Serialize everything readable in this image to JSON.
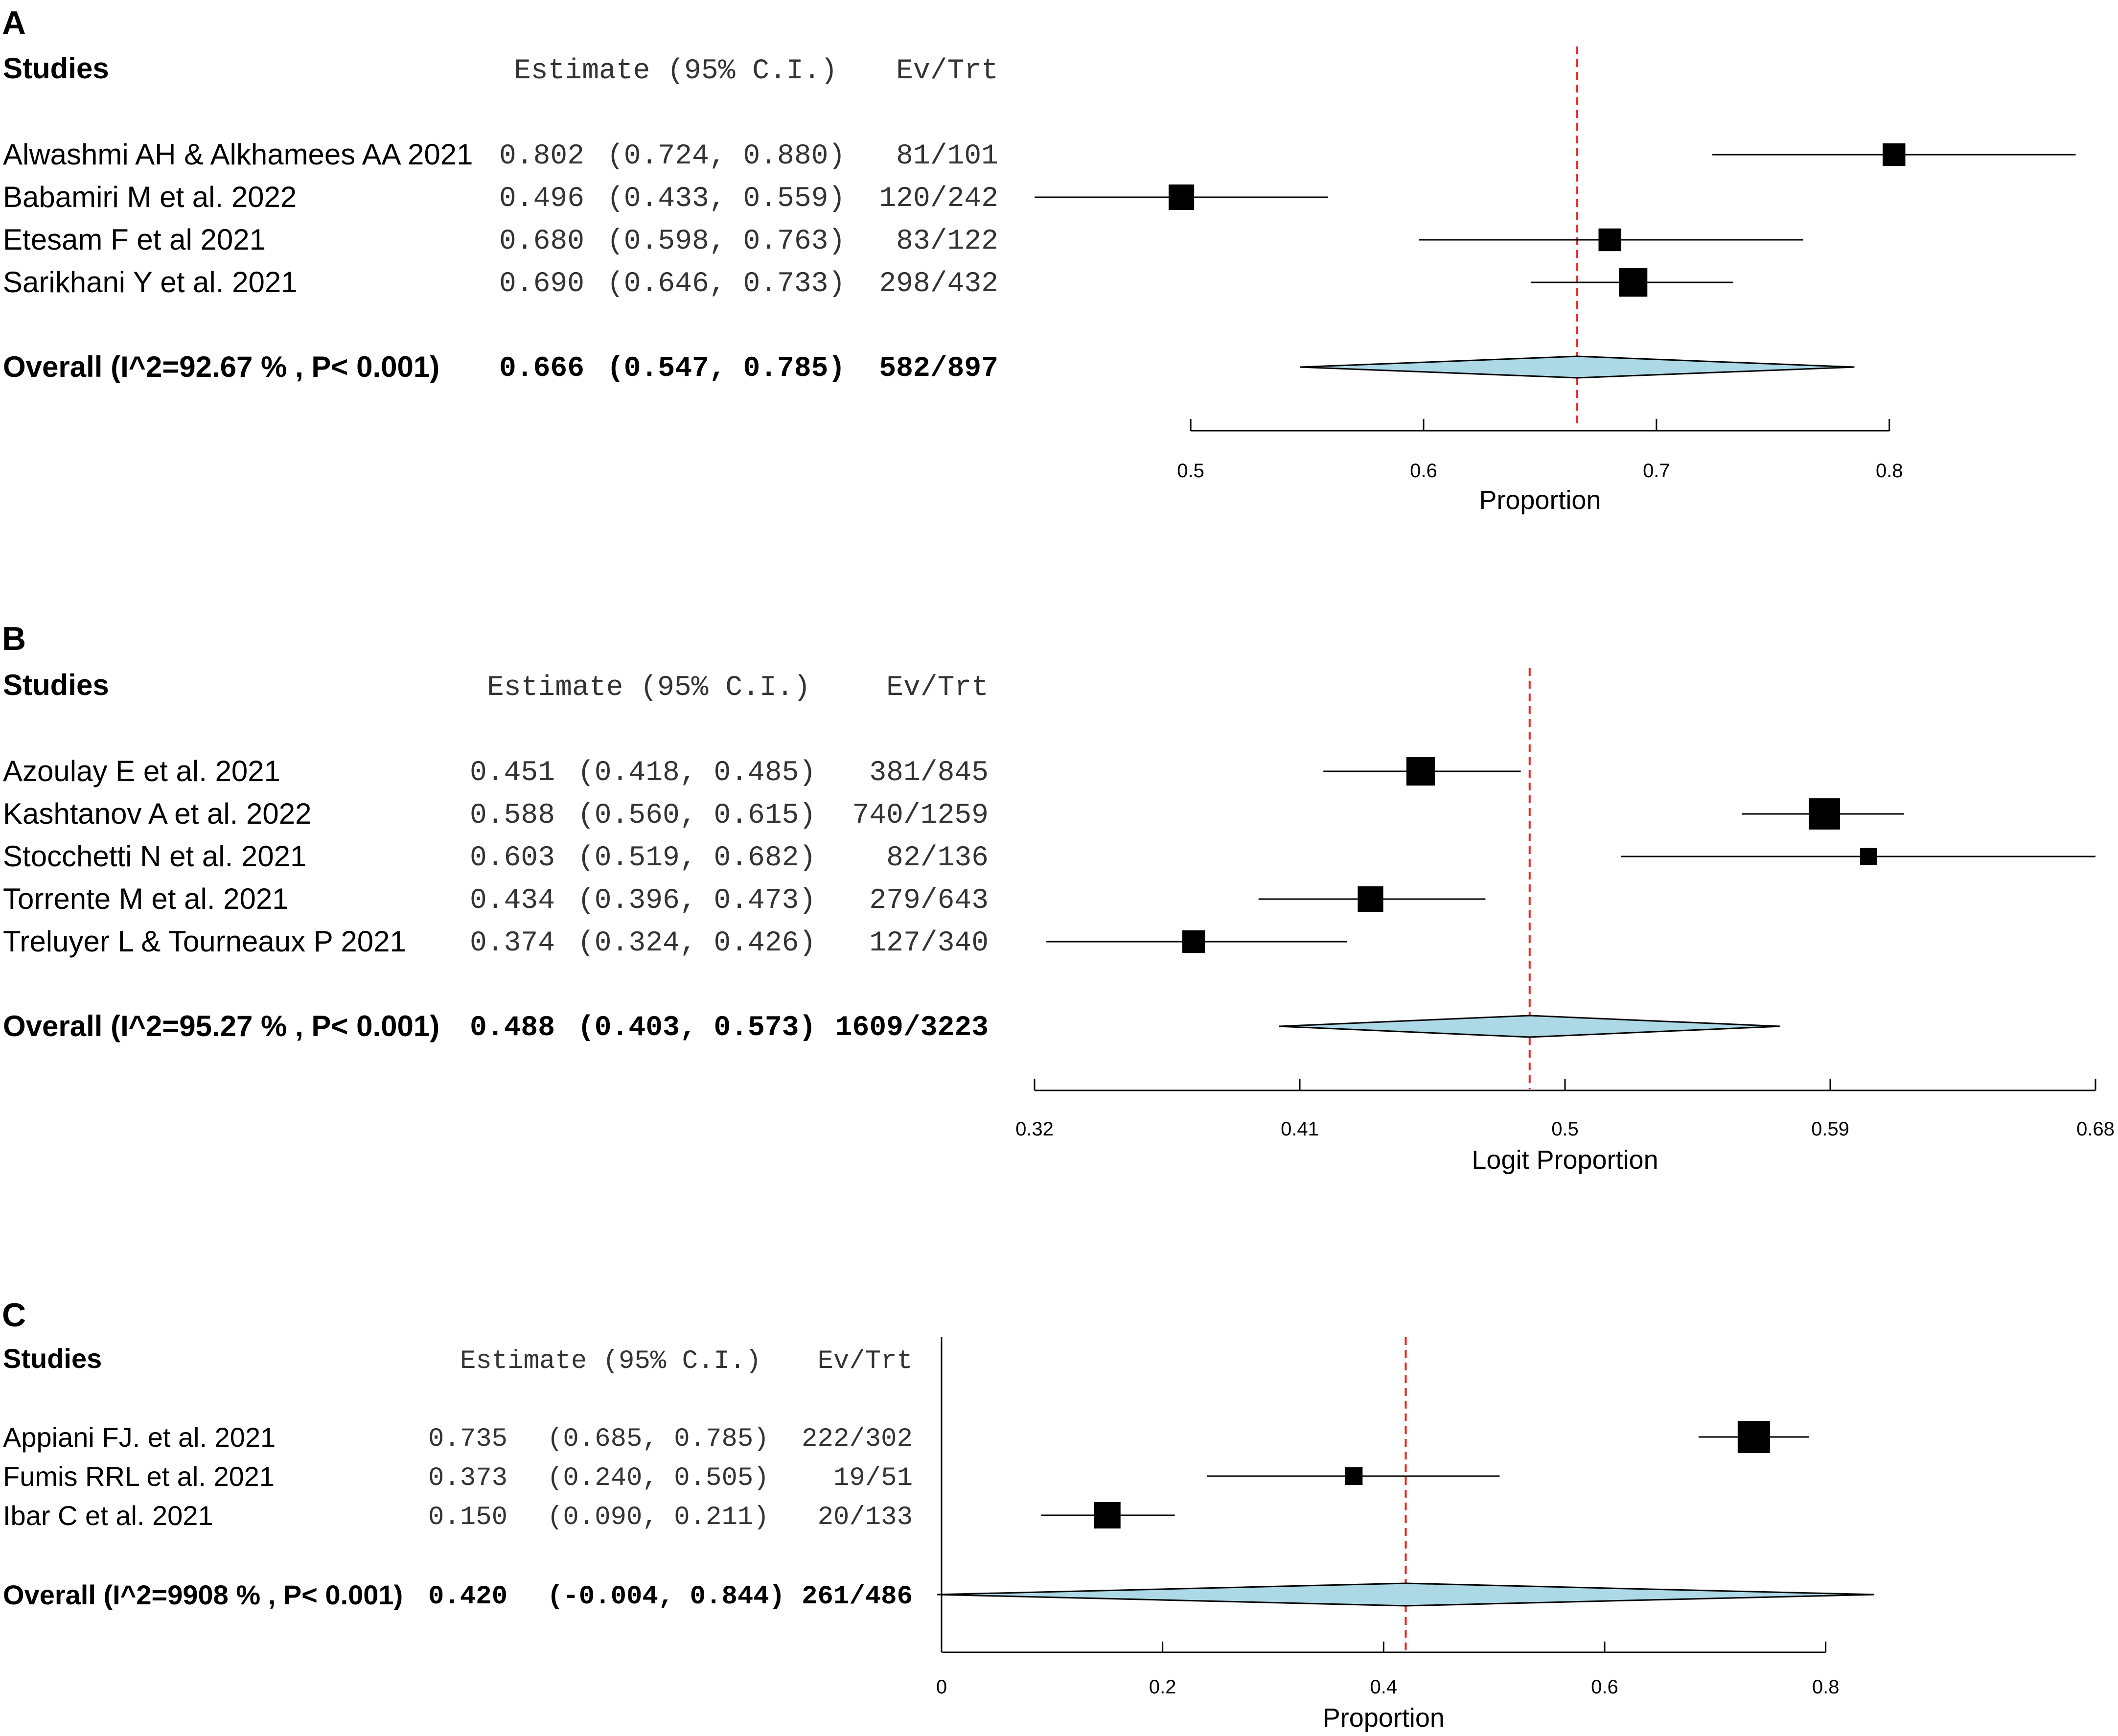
{
  "colors": {
    "text": "#000000",
    "mono_text": "#333333",
    "ref_line": "#e8221c",
    "diamond_fill": "#add8e6",
    "box": "#000000"
  },
  "chart_data": [
    {
      "type": "forest",
      "panel_label": "A",
      "headers": {
        "studies": "Studies",
        "estimate": "Estimate (95% C.I.)",
        "evtrt": "Ev/Trt"
      },
      "studies": [
        {
          "name": "Alwashmi AH & Alkhamees AA 2021",
          "estimate": 0.802,
          "lower": 0.724,
          "upper": 0.88,
          "est_text": "0.802",
          "ci_text": "(0.724, 0.880)",
          "evtrt": "81/101",
          "weight": 0.8
        },
        {
          "name": "Babamiri M et al.  2022",
          "estimate": 0.496,
          "lower": 0.433,
          "upper": 0.559,
          "est_text": "0.496",
          "ci_text": "(0.433, 0.559)",
          "evtrt": "120/242",
          "weight": 0.9
        },
        {
          "name": "Etesam F et al 2021",
          "estimate": 0.68,
          "lower": 0.598,
          "upper": 0.763,
          "est_text": "0.680",
          "ci_text": "(0.598, 0.763)",
          "evtrt": "83/122",
          "weight": 0.8
        },
        {
          "name": "Sarikhani Y et al. 2021",
          "estimate": 0.69,
          "lower": 0.646,
          "upper": 0.733,
          "est_text": "0.690",
          "ci_text": "(0.646, 0.733)",
          "evtrt": "298/432",
          "weight": 1.0
        }
      ],
      "overall": {
        "label": "Overall (I^2=92.67 % , P< 0.001)",
        "estimate": 0.666,
        "lower": 0.547,
        "upper": 0.785,
        "est_text": "0.666",
        "ci_text": "(0.547, 0.785)",
        "evtrt": "582/897"
      },
      "xlabel": "Proportion",
      "ticks": [
        0.5,
        0.6,
        0.7,
        0.8
      ],
      "tick_labels": [
        "0.5",
        "0.6",
        "0.7",
        "0.8"
      ],
      "xlim": [
        0.5,
        0.8
      ],
      "view_range": [
        0.43,
        0.886
      ],
      "ref_line": 0.666
    },
    {
      "type": "forest",
      "panel_label": "B",
      "headers": {
        "studies": "Studies",
        "estimate": "Estimate (95% C.I.)",
        "evtrt": "Ev/Trt"
      },
      "studies": [
        {
          "name": "Azoulay E et al.  2021",
          "estimate": 0.451,
          "lower": 0.418,
          "upper": 0.485,
          "est_text": "0.451",
          "ci_text": "(0.418, 0.485)",
          "evtrt": "381/845",
          "weight": 1.0
        },
        {
          "name": "Kashtanov A et al.  2022",
          "estimate": 0.588,
          "lower": 0.56,
          "upper": 0.615,
          "est_text": "0.588",
          "ci_text": "(0.560, 0.615)",
          "evtrt": "740/1259",
          "weight": 1.1
        },
        {
          "name": "Stocchetti N et al.  2021",
          "estimate": 0.603,
          "lower": 0.519,
          "upper": 0.682,
          "est_text": "0.603",
          "ci_text": "(0.519, 0.682)",
          "evtrt": "82/136",
          "weight": 0.6
        },
        {
          "name": "Torrente M et al. 2021",
          "estimate": 0.434,
          "lower": 0.396,
          "upper": 0.473,
          "est_text": "0.434",
          "ci_text": "(0.396, 0.473)",
          "evtrt": "279/643",
          "weight": 0.9
        },
        {
          "name": "Treluyer L & Tourneaux P 2021",
          "estimate": 0.374,
          "lower": 0.324,
          "upper": 0.426,
          "est_text": "0.374",
          "ci_text": "(0.324, 0.426)",
          "evtrt": "127/340",
          "weight": 0.8
        }
      ],
      "overall": {
        "label": "Overall (I^2=95.27 % , P< 0.001)",
        "estimate": 0.488,
        "lower": 0.403,
        "upper": 0.573,
        "est_text": "0.488",
        "ci_text": "(0.403, 0.573)",
        "evtrt": "1609/3223"
      },
      "xlabel": "Logit Proportion",
      "ticks": [
        0.32,
        0.41,
        0.5,
        0.59,
        0.68
      ],
      "tick_labels": [
        "0.32",
        "0.41",
        "0.5",
        "0.59",
        "0.68"
      ],
      "xlim": [
        0.32,
        0.68
      ],
      "view_range": [
        0.32,
        0.68
      ],
      "ref_line": 0.488
    },
    {
      "type": "forest",
      "panel_label": "C",
      "headers": {
        "studies": "Studies",
        "estimate": "Estimate (95% C.I.)",
        "evtrt": "Ev/Trt"
      },
      "studies": [
        {
          "name": "Appiani FJ. et al. 2021",
          "estimate": 0.735,
          "lower": 0.685,
          "upper": 0.785,
          "est_text": "0.735",
          "ci_text": "(0.685, 0.785)",
          "evtrt": "222/302",
          "weight": 1.1
        },
        {
          "name": "Fumis RRL et al. 2021",
          "estimate": 0.373,
          "lower": 0.24,
          "upper": 0.505,
          "est_text": "0.373",
          "ci_text": "(0.240, 0.505)",
          "evtrt": "19/51",
          "weight": 0.6
        },
        {
          "name": "Ibar C et al. 2021",
          "estimate": 0.15,
          "lower": 0.09,
          "upper": 0.211,
          "est_text": "0.150",
          "ci_text": "(0.090, 0.211)",
          "evtrt": "20/133",
          "weight": 0.9
        }
      ],
      "overall": {
        "label": "Overall (I^2=9908 % , P< 0.001)",
        "estimate": 0.42,
        "lower": -0.004,
        "upper": 0.844,
        "est_text": "0.420",
        "ci_text": "(-0.004, 0.844)",
        "evtrt": "261/486"
      },
      "xlabel": "Proportion",
      "ticks": [
        0,
        0.2,
        0.4,
        0.6,
        0.8
      ],
      "tick_labels": [
        "0",
        "0.2",
        "0.4",
        "0.6",
        "0.8"
      ],
      "xlim": [
        0,
        0.8
      ],
      "view_range": [
        0,
        0.844
      ],
      "ref_line": 0.42
    }
  ]
}
